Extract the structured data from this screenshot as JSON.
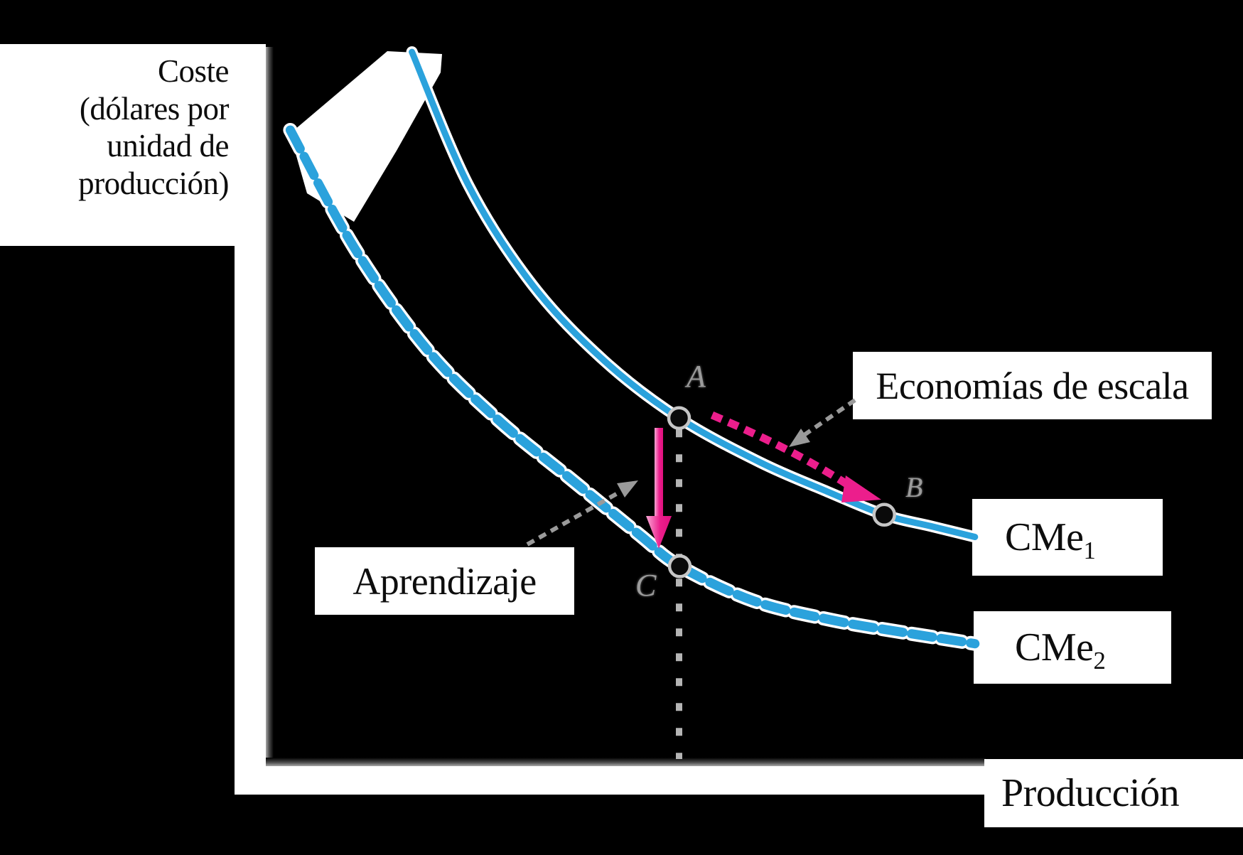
{
  "labels": {
    "y_axis_lines": [
      "Coste",
      "(dólares por",
      "unidad de",
      "producción)"
    ],
    "x_axis": "Producción",
    "economies": "Economías de escala",
    "learning": "Aprendizaje",
    "cme1_base": "CMe",
    "cme1_sub": "1",
    "cme2_base": "CMe",
    "cme2_sub": "2"
  },
  "colors": {
    "background": "#000000",
    "curve_blue": "#2BA2DC",
    "curve_halo": "#ffffff",
    "arrow_pink": "#EC1E8C",
    "arrow_pink_light": "#F9A8D6",
    "pointer_gray": "#9a9a9a",
    "label_box_bg": "#ffffff",
    "label_text": "#0d0d0d",
    "point_letter_gray": "#9b9b9b"
  },
  "chart_data": {
    "type": "line",
    "title": "",
    "xlabel": "Producción",
    "ylabel": "Coste (dólares por unidad de producción)",
    "axis_numeric_labels": false,
    "grid": false,
    "xlim": [
      0,
      100
    ],
    "ylim": [
      0,
      100
    ],
    "series": [
      {
        "name": "CMe1",
        "style": "solid",
        "color": "#2BA2DC",
        "points": [
          [
            20.3,
            98.9
          ],
          [
            28.2,
            80.2
          ],
          [
            37.1,
            66.3
          ],
          [
            47.0,
            55.8
          ],
          [
            57.4,
            47.8
          ],
          [
            68.7,
            41.6
          ],
          [
            77.6,
            37.7
          ],
          [
            85.9,
            34.3
          ],
          [
            92.4,
            32.7
          ],
          [
            98.5,
            31.2
          ]
        ]
      },
      {
        "name": "CMe2",
        "style": "dashed",
        "color": "#2BA2DC",
        "points": [
          [
            3.4,
            88.0
          ],
          [
            12.4,
            71.4
          ],
          [
            22.3,
            57.5
          ],
          [
            32.2,
            47.6
          ],
          [
            42.1,
            39.5
          ],
          [
            51.9,
            31.5
          ],
          [
            57.5,
            27.1
          ],
          [
            67.7,
            22.3
          ],
          [
            78.6,
            19.6
          ],
          [
            88.4,
            17.9
          ],
          [
            98.5,
            16.3
          ]
        ]
      }
    ],
    "marked_points": {
      "A": {
        "label": "A",
        "x": 57.4,
        "y": 47.8,
        "on": "CMe1"
      },
      "B": {
        "label": "B",
        "x": 85.9,
        "y": 34.3,
        "on": "CMe1"
      },
      "C": {
        "label": "C",
        "x": 57.5,
        "y": 27.1,
        "on": "CMe2"
      }
    },
    "annotations": [
      {
        "label": "Economías de escala",
        "meaning": "movement from A to B along curve CMe1 (pink dashed arrow)"
      },
      {
        "label": "Aprendizaje",
        "meaning": "vertical drop from A on CMe1 to C on CMe2 (pink solid arrow)"
      }
    ],
    "legend_position": "curve-end labels: CMe1, CMe2"
  }
}
